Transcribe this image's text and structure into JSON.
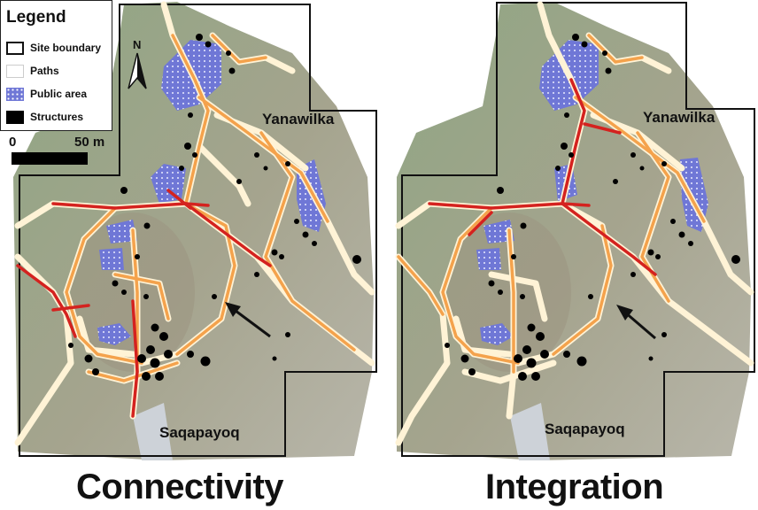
{
  "legend": {
    "title": "Legend",
    "items": [
      {
        "label": "Site boundary",
        "symbol": "outline-square"
      },
      {
        "label": "Paths",
        "symbol": "white-line"
      },
      {
        "label": "Public area",
        "symbol": "blue-dotted-fill",
        "color": "#6f77d6"
      },
      {
        "label": "Structures",
        "symbol": "black-fill",
        "color": "#000000"
      }
    ]
  },
  "north_arrow": {
    "label": "N"
  },
  "scale_bar": {
    "start": "0",
    "end": "50 m"
  },
  "maps": [
    {
      "caption": "Connectivity",
      "labels": {
        "north": "Yanawilka",
        "south": "Saqapayoq"
      }
    },
    {
      "caption": "Integration",
      "labels": {
        "north": "Yanawilka",
        "south": "Saqapayoq"
      }
    }
  ],
  "colors": {
    "terrain": "#8a9f7c",
    "path_low": "#fff1c8",
    "path_mid": "#f39a3e",
    "path_high": "#d4221f",
    "public_area": "#6f77d6",
    "structure": "#000000",
    "boundary": "#111111"
  }
}
